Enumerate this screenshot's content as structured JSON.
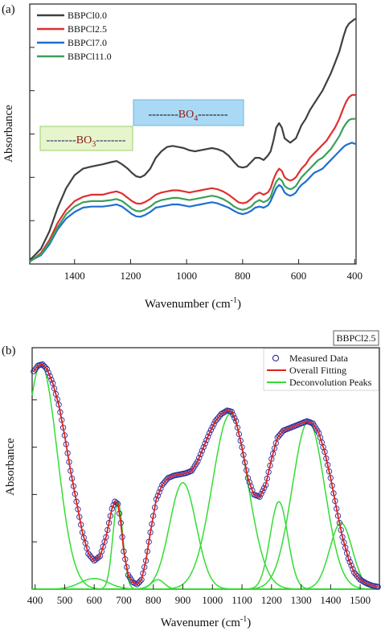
{
  "panel_a": {
    "panel_label": "(a)",
    "band_bo3": {
      "dashes_left": "--------",
      "main": "BO",
      "sub": "3",
      "dashes_right": "--------",
      "fill": "#e6f5cc",
      "stroke": "#9bd06a"
    },
    "band_bo4": {
      "dashes_left": "--------",
      "main": "BO",
      "sub": "4",
      "dashes_right": "--------",
      "fill": "#a9d9f4",
      "stroke": "#6cb6e2"
    }
  },
  "panel_b": {
    "panel_label": "(b)",
    "sample_tag": "BBPCl2.5"
  },
  "chart_data": [
    {
      "type": "line",
      "title": "",
      "xlabel": "Wavenumber (cm",
      "xlabel_sup": "-1",
      "xlabel_close": ")",
      "ylabel": "Absorbance",
      "x_reversed": true,
      "xlim": [
        1560,
        395
      ],
      "ylim": [
        0,
        1.2
      ],
      "xticks": [
        1400,
        1200,
        1000,
        800,
        600,
        400
      ],
      "legend_position": "top-left",
      "series": [
        {
          "name": "BBPCl0.0",
          "color": "#404040",
          "x": [
            1560,
            1550,
            1520,
            1490,
            1460,
            1430,
            1400,
            1370,
            1340,
            1300,
            1270,
            1250,
            1230,
            1210,
            1195,
            1180,
            1165,
            1150,
            1130,
            1110,
            1090,
            1070,
            1050,
            1030,
            1010,
            990,
            970,
            950,
            930,
            910,
            890,
            870,
            850,
            830,
            815,
            800,
            785,
            770,
            755,
            740,
            725,
            710,
            700,
            690,
            680,
            670,
            660,
            650,
            640,
            630,
            620,
            610,
            600,
            590,
            575,
            560,
            545,
            530,
            515,
            500,
            485,
            470,
            455,
            440,
            430,
            420,
            410,
            400,
            395
          ],
          "y": [
            0.02,
            0.03,
            0.07,
            0.15,
            0.26,
            0.35,
            0.41,
            0.44,
            0.45,
            0.46,
            0.47,
            0.475,
            0.46,
            0.44,
            0.42,
            0.405,
            0.4,
            0.41,
            0.44,
            0.49,
            0.52,
            0.54,
            0.545,
            0.54,
            0.535,
            0.525,
            0.52,
            0.525,
            0.53,
            0.535,
            0.53,
            0.52,
            0.5,
            0.47,
            0.45,
            0.445,
            0.45,
            0.47,
            0.49,
            0.49,
            0.48,
            0.5,
            0.52,
            0.57,
            0.63,
            0.65,
            0.63,
            0.58,
            0.57,
            0.56,
            0.57,
            0.58,
            0.61,
            0.64,
            0.67,
            0.71,
            0.74,
            0.77,
            0.8,
            0.84,
            0.88,
            0.93,
            0.98,
            1.05,
            1.09,
            1.11,
            1.12,
            1.13,
            1.13
          ]
        },
        {
          "name": "BBPCl2.5",
          "color": "#e03030",
          "x": [
            1560,
            1550,
            1520,
            1490,
            1460,
            1430,
            1400,
            1370,
            1340,
            1300,
            1270,
            1250,
            1230,
            1210,
            1195,
            1180,
            1165,
            1150,
            1130,
            1110,
            1090,
            1070,
            1050,
            1030,
            1010,
            990,
            970,
            950,
            930,
            910,
            890,
            870,
            850,
            830,
            815,
            800,
            785,
            770,
            755,
            740,
            725,
            710,
            700,
            690,
            680,
            670,
            660,
            650,
            640,
            630,
            620,
            610,
            600,
            590,
            575,
            560,
            545,
            530,
            515,
            500,
            485,
            470,
            455,
            440,
            430,
            420,
            410,
            400,
            395
          ],
          "y": [
            0.01,
            0.02,
            0.05,
            0.11,
            0.19,
            0.25,
            0.29,
            0.31,
            0.32,
            0.32,
            0.33,
            0.335,
            0.325,
            0.305,
            0.29,
            0.28,
            0.278,
            0.285,
            0.3,
            0.32,
            0.33,
            0.335,
            0.34,
            0.34,
            0.335,
            0.33,
            0.335,
            0.34,
            0.345,
            0.35,
            0.345,
            0.335,
            0.32,
            0.3,
            0.285,
            0.28,
            0.285,
            0.3,
            0.32,
            0.33,
            0.32,
            0.33,
            0.35,
            0.39,
            0.42,
            0.44,
            0.43,
            0.4,
            0.39,
            0.385,
            0.39,
            0.4,
            0.42,
            0.44,
            0.46,
            0.49,
            0.51,
            0.53,
            0.55,
            0.57,
            0.6,
            0.63,
            0.67,
            0.72,
            0.75,
            0.77,
            0.78,
            0.78,
            0.78
          ]
        },
        {
          "name": "BBPCl7.0",
          "color": "#1f6fd0",
          "x": [
            1560,
            1550,
            1520,
            1490,
            1460,
            1430,
            1400,
            1370,
            1340,
            1300,
            1270,
            1250,
            1230,
            1210,
            1195,
            1180,
            1165,
            1150,
            1130,
            1110,
            1090,
            1070,
            1050,
            1030,
            1010,
            990,
            970,
            950,
            930,
            910,
            890,
            870,
            850,
            830,
            815,
            800,
            785,
            770,
            755,
            740,
            725,
            710,
            700,
            690,
            680,
            670,
            660,
            650,
            640,
            630,
            620,
            610,
            600,
            590,
            575,
            560,
            545,
            530,
            515,
            500,
            485,
            470,
            455,
            440,
            430,
            420,
            410,
            400,
            395
          ],
          "y": [
            0.01,
            0.02,
            0.04,
            0.09,
            0.16,
            0.21,
            0.24,
            0.26,
            0.265,
            0.265,
            0.27,
            0.275,
            0.265,
            0.245,
            0.23,
            0.22,
            0.218,
            0.225,
            0.24,
            0.26,
            0.265,
            0.27,
            0.275,
            0.275,
            0.27,
            0.265,
            0.27,
            0.275,
            0.28,
            0.285,
            0.28,
            0.27,
            0.26,
            0.245,
            0.235,
            0.23,
            0.235,
            0.245,
            0.26,
            0.265,
            0.26,
            0.27,
            0.29,
            0.32,
            0.35,
            0.365,
            0.355,
            0.33,
            0.32,
            0.315,
            0.32,
            0.33,
            0.35,
            0.365,
            0.38,
            0.4,
            0.42,
            0.43,
            0.44,
            0.46,
            0.48,
            0.5,
            0.52,
            0.54,
            0.55,
            0.555,
            0.56,
            0.555,
            0.555
          ]
        },
        {
          "name": "BBPCl11.0",
          "color": "#3aa05a",
          "x": [
            1560,
            1550,
            1520,
            1490,
            1460,
            1430,
            1400,
            1370,
            1340,
            1300,
            1270,
            1250,
            1230,
            1210,
            1195,
            1180,
            1165,
            1150,
            1130,
            1110,
            1090,
            1070,
            1050,
            1030,
            1010,
            990,
            970,
            950,
            930,
            910,
            890,
            870,
            850,
            830,
            815,
            800,
            785,
            770,
            755,
            740,
            725,
            710,
            700,
            690,
            680,
            670,
            660,
            650,
            640,
            630,
            620,
            610,
            600,
            590,
            575,
            560,
            545,
            530,
            515,
            500,
            485,
            470,
            455,
            440,
            430,
            420,
            410,
            400,
            395
          ],
          "y": [
            0.01,
            0.02,
            0.045,
            0.1,
            0.17,
            0.23,
            0.265,
            0.285,
            0.29,
            0.29,
            0.295,
            0.3,
            0.29,
            0.27,
            0.255,
            0.245,
            0.243,
            0.25,
            0.265,
            0.285,
            0.295,
            0.3,
            0.305,
            0.305,
            0.3,
            0.295,
            0.3,
            0.305,
            0.31,
            0.315,
            0.31,
            0.3,
            0.285,
            0.265,
            0.255,
            0.25,
            0.255,
            0.265,
            0.285,
            0.295,
            0.285,
            0.295,
            0.31,
            0.35,
            0.38,
            0.395,
            0.385,
            0.36,
            0.35,
            0.345,
            0.35,
            0.36,
            0.38,
            0.4,
            0.42,
            0.44,
            0.46,
            0.48,
            0.49,
            0.51,
            0.53,
            0.56,
            0.59,
            0.63,
            0.65,
            0.665,
            0.67,
            0.67,
            0.67
          ]
        }
      ]
    },
    {
      "type": "line",
      "title": "",
      "xlabel": "Wavenumer (cm",
      "xlabel_sup": "-1",
      "xlabel_close": ")",
      "ylabel": "Absorbance",
      "xlim": [
        390,
        1565
      ],
      "ylim": [
        0,
        1.0
      ],
      "xticks": [
        400,
        500,
        600,
        700,
        800,
        900,
        1000,
        1100,
        1200,
        1300,
        1400,
        1500
      ],
      "legend_position": "top-right",
      "measured": {
        "name": "Measured Data",
        "color": "#2a2a9a",
        "x": [
          395,
          410,
          425,
          440,
          460,
          480,
          500,
          520,
          540,
          560,
          580,
          600,
          620,
          640,
          660,
          670,
          680,
          690,
          700,
          715,
          730,
          745,
          760,
          775,
          790,
          810,
          830,
          850,
          870,
          890,
          910,
          930,
          950,
          970,
          990,
          1010,
          1030,
          1050,
          1065,
          1080,
          1100,
          1120,
          1140,
          1160,
          1180,
          1200,
          1220,
          1240,
          1260,
          1280,
          1300,
          1320,
          1340,
          1360,
          1380,
          1400,
          1420,
          1440,
          1460,
          1480,
          1500,
          1520,
          1540,
          1560
        ],
        "y": [
          0.92,
          0.945,
          0.95,
          0.93,
          0.87,
          0.78,
          0.65,
          0.5,
          0.37,
          0.24,
          0.15,
          0.12,
          0.14,
          0.22,
          0.34,
          0.37,
          0.36,
          0.28,
          0.16,
          0.06,
          0.03,
          0.02,
          0.04,
          0.12,
          0.24,
          0.38,
          0.44,
          0.47,
          0.48,
          0.485,
          0.49,
          0.5,
          0.54,
          0.6,
          0.66,
          0.71,
          0.74,
          0.755,
          0.75,
          0.71,
          0.6,
          0.47,
          0.4,
          0.39,
          0.44,
          0.55,
          0.64,
          0.67,
          0.68,
          0.69,
          0.7,
          0.71,
          0.7,
          0.66,
          0.58,
          0.47,
          0.34,
          0.22,
          0.13,
          0.07,
          0.04,
          0.025,
          0.015,
          0.01
        ]
      },
      "fit": {
        "name": "Overall Fitting",
        "color": "#e02020"
      },
      "deconvolution": {
        "name": "Deconvolution Peaks",
        "color": "#33dd33",
        "peaks": [
          {
            "center": 420,
            "amp": 0.95,
            "width": 55
          },
          {
            "center": 600,
            "amp": 0.045,
            "width": 48
          },
          {
            "center": 680,
            "amp": 0.37,
            "width": 17
          },
          {
            "center": 815,
            "amp": 0.04,
            "width": 22
          },
          {
            "center": 900,
            "amp": 0.45,
            "width": 45
          },
          {
            "center": 1060,
            "amp": 0.74,
            "width": 60
          },
          {
            "center": 1225,
            "amp": 0.37,
            "width": 30
          },
          {
            "center": 1325,
            "amp": 0.71,
            "width": 55
          },
          {
            "center": 1435,
            "amp": 0.28,
            "width": 38
          }
        ]
      }
    }
  ]
}
